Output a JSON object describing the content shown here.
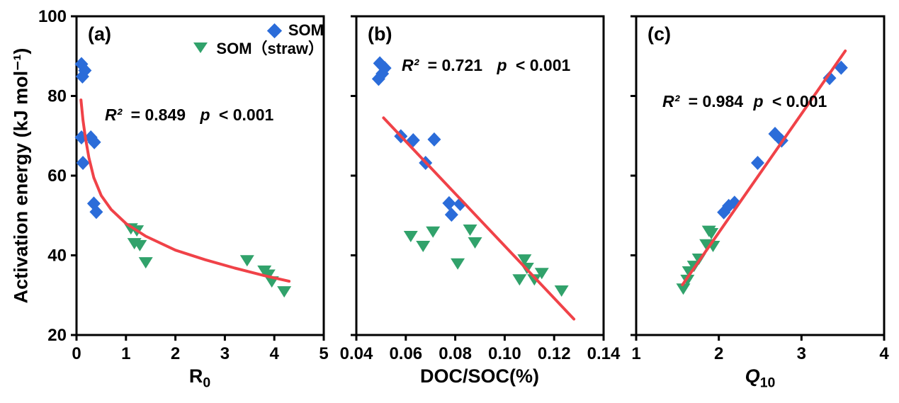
{
  "figure": {
    "y_axis_title": "Activation energy (kJ mol⁻¹)",
    "colors": {
      "som": "#2B6CD9",
      "straw": "#31A26B",
      "trend": "#F04248",
      "axis": "#000000"
    },
    "legend": [
      {
        "label": "SOM",
        "marker": "diamond",
        "color": "#2B6CD9"
      },
      {
        "label": "SOM（straw）",
        "marker": "triangle-down",
        "color": "#31A26B"
      }
    ]
  },
  "chart_data": [
    {
      "id": "a",
      "type": "scatter",
      "panel_label": "(a)",
      "xlabel": {
        "main": "R",
        "sub": "0"
      },
      "stats": {
        "r2_label": "R²",
        "r2_eq": "= 0.849",
        "p_label": "p",
        "p_value": "< 0.001"
      },
      "xlim": [
        0,
        5
      ],
      "ylim": [
        20,
        100
      ],
      "xticks": [
        {
          "v": 0,
          "label": "0"
        },
        {
          "v": 1,
          "label": "1"
        },
        {
          "v": 2,
          "label": "2"
        },
        {
          "v": 3,
          "label": "3"
        },
        {
          "v": 4,
          "label": "4"
        },
        {
          "v": 5,
          "label": "5"
        }
      ],
      "yticks": [
        {
          "v": 20,
          "label": "20"
        },
        {
          "v": 40,
          "label": "40"
        },
        {
          "v": 60,
          "label": "60"
        },
        {
          "v": 80,
          "label": "80"
        },
        {
          "v": 100,
          "label": "100"
        }
      ],
      "show_ytick_labels": true,
      "series": [
        {
          "name": "SOM",
          "marker": "diamond",
          "color": "#2B6CD9",
          "points": [
            [
              0.1,
              88.0
            ],
            [
              0.17,
              86.4
            ],
            [
              0.12,
              84.9
            ],
            [
              0.1,
              69.6
            ],
            [
              0.29,
              69.6
            ],
            [
              0.36,
              68.4
            ],
            [
              0.13,
              63.2
            ],
            [
              0.35,
              53.0
            ],
            [
              0.4,
              50.9
            ]
          ]
        },
        {
          "name": "SOM（straw）",
          "marker": "triangle-down",
          "color": "#31A26B",
          "points": [
            [
              1.1,
              46.8
            ],
            [
              1.22,
              46.3
            ],
            [
              1.17,
              43.1
            ],
            [
              1.28,
              42.6
            ],
            [
              1.4,
              38.3
            ],
            [
              3.45,
              38.8
            ],
            [
              3.8,
              36.2
            ],
            [
              3.88,
              35.2
            ],
            [
              3.95,
              33.5
            ],
            [
              4.2,
              31.0
            ]
          ]
        }
      ],
      "trend": {
        "shape": "curve",
        "color": "#F04248",
        "points": [
          [
            0.09,
            79.0
          ],
          [
            0.13,
            74.0
          ],
          [
            0.18,
            69.5
          ],
          [
            0.25,
            64.5
          ],
          [
            0.35,
            59.5
          ],
          [
            0.5,
            55.0
          ],
          [
            0.7,
            51.5
          ],
          [
            1.0,
            48.0
          ],
          [
            1.4,
            44.8
          ],
          [
            2.0,
            41.3
          ],
          [
            2.6,
            38.9
          ],
          [
            3.2,
            36.8
          ],
          [
            3.8,
            34.9
          ],
          [
            4.3,
            33.5
          ]
        ]
      }
    },
    {
      "id": "b",
      "type": "scatter",
      "panel_label": "(b)",
      "xlabel": {
        "main": "DOC/SOC(%)"
      },
      "stats": {
        "r2_label": "R²",
        "r2_eq": "= 0.721",
        "p_label": "p",
        "p_value": "< 0.001"
      },
      "xlim": [
        0.04,
        0.14
      ],
      "ylim": [
        20,
        100
      ],
      "xticks": [
        {
          "v": 0.04,
          "label": "0.04"
        },
        {
          "v": 0.06,
          "label": "0.06"
        },
        {
          "v": 0.08,
          "label": "0.08"
        },
        {
          "v": 0.1,
          "label": "0.10"
        },
        {
          "v": 0.12,
          "label": "0.12"
        },
        {
          "v": 0.14,
          "label": "0.14"
        }
      ],
      "yticks": [
        {
          "v": 20,
          "label": "20"
        },
        {
          "v": 40,
          "label": "40"
        },
        {
          "v": 60,
          "label": "60"
        },
        {
          "v": 80,
          "label": "80"
        },
        {
          "v": 100,
          "label": "100"
        }
      ],
      "show_ytick_labels": false,
      "series": [
        {
          "name": "SOM",
          "marker": "diamond",
          "color": "#2B6CD9",
          "points": [
            [
              0.0495,
              88.2
            ],
            [
              0.0515,
              87.0
            ],
            [
              0.0505,
              85.6
            ],
            [
              0.049,
              84.3
            ],
            [
              0.058,
              69.9
            ],
            [
              0.063,
              68.9
            ],
            [
              0.0715,
              69.1
            ],
            [
              0.068,
              63.2
            ],
            [
              0.0775,
              53.1
            ],
            [
              0.082,
              52.9
            ],
            [
              0.0785,
              50.2
            ]
          ]
        },
        {
          "name": "SOM（straw）",
          "marker": "triangle-down",
          "color": "#31A26B",
          "points": [
            [
              0.062,
              44.9
            ],
            [
              0.071,
              46.0
            ],
            [
              0.067,
              42.4
            ],
            [
              0.086,
              46.5
            ],
            [
              0.088,
              43.3
            ],
            [
              0.081,
              38.0
            ],
            [
              0.108,
              39.0
            ],
            [
              0.109,
              36.9
            ],
            [
              0.115,
              35.6
            ],
            [
              0.106,
              34.0
            ],
            [
              0.112,
              34.0
            ],
            [
              0.123,
              31.2
            ]
          ]
        }
      ],
      "trend": {
        "shape": "line",
        "color": "#F04248",
        "points": [
          [
            0.051,
            74.5
          ],
          [
            0.128,
            24.0
          ]
        ]
      }
    },
    {
      "id": "c",
      "type": "scatter",
      "panel_label": "(c)",
      "xlabel": {
        "main": "Q",
        "sub": "10"
      },
      "stats": {
        "r2_label": "R²",
        "r2_eq": "= 0.984",
        "p_label": "p",
        "p_value": "< 0.001"
      },
      "xlim": [
        1,
        4
      ],
      "ylim": [
        20,
        100
      ],
      "xticks": [
        {
          "v": 1,
          "label": "1"
        },
        {
          "v": 2,
          "label": "2"
        },
        {
          "v": 3,
          "label": "3"
        },
        {
          "v": 4,
          "label": "4"
        }
      ],
      "yticks": [
        {
          "v": 20,
          "label": "20"
        },
        {
          "v": 40,
          "label": "40"
        },
        {
          "v": 60,
          "label": "60"
        },
        {
          "v": 80,
          "label": "80"
        },
        {
          "v": 100,
          "label": "100"
        }
      ],
      "show_ytick_labels": false,
      "series": [
        {
          "name": "SOM",
          "marker": "diamond",
          "color": "#2B6CD9",
          "points": [
            [
              3.34,
              84.5
            ],
            [
              3.48,
              87.1
            ],
            [
              2.68,
              70.5
            ],
            [
              2.76,
              68.8
            ],
            [
              2.47,
              63.2
            ],
            [
              2.06,
              50.8
            ],
            [
              2.12,
              52.4
            ],
            [
              2.19,
              53.2
            ]
          ]
        },
        {
          "name": "SOM（straw）",
          "marker": "triangle-down",
          "color": "#31A26B",
          "points": [
            [
              1.88,
              46.2
            ],
            [
              1.91,
              45.6
            ],
            [
              1.85,
              42.8
            ],
            [
              1.93,
              42.4
            ],
            [
              1.76,
              39.2
            ],
            [
              1.7,
              37.4
            ],
            [
              1.64,
              36.0
            ],
            [
              1.62,
              33.9
            ],
            [
              1.57,
              31.7
            ]
          ]
        }
      ],
      "trend": {
        "shape": "line",
        "color": "#F04248",
        "points": [
          [
            1.56,
            32.6
          ],
          [
            3.53,
            91.3
          ]
        ]
      }
    }
  ]
}
